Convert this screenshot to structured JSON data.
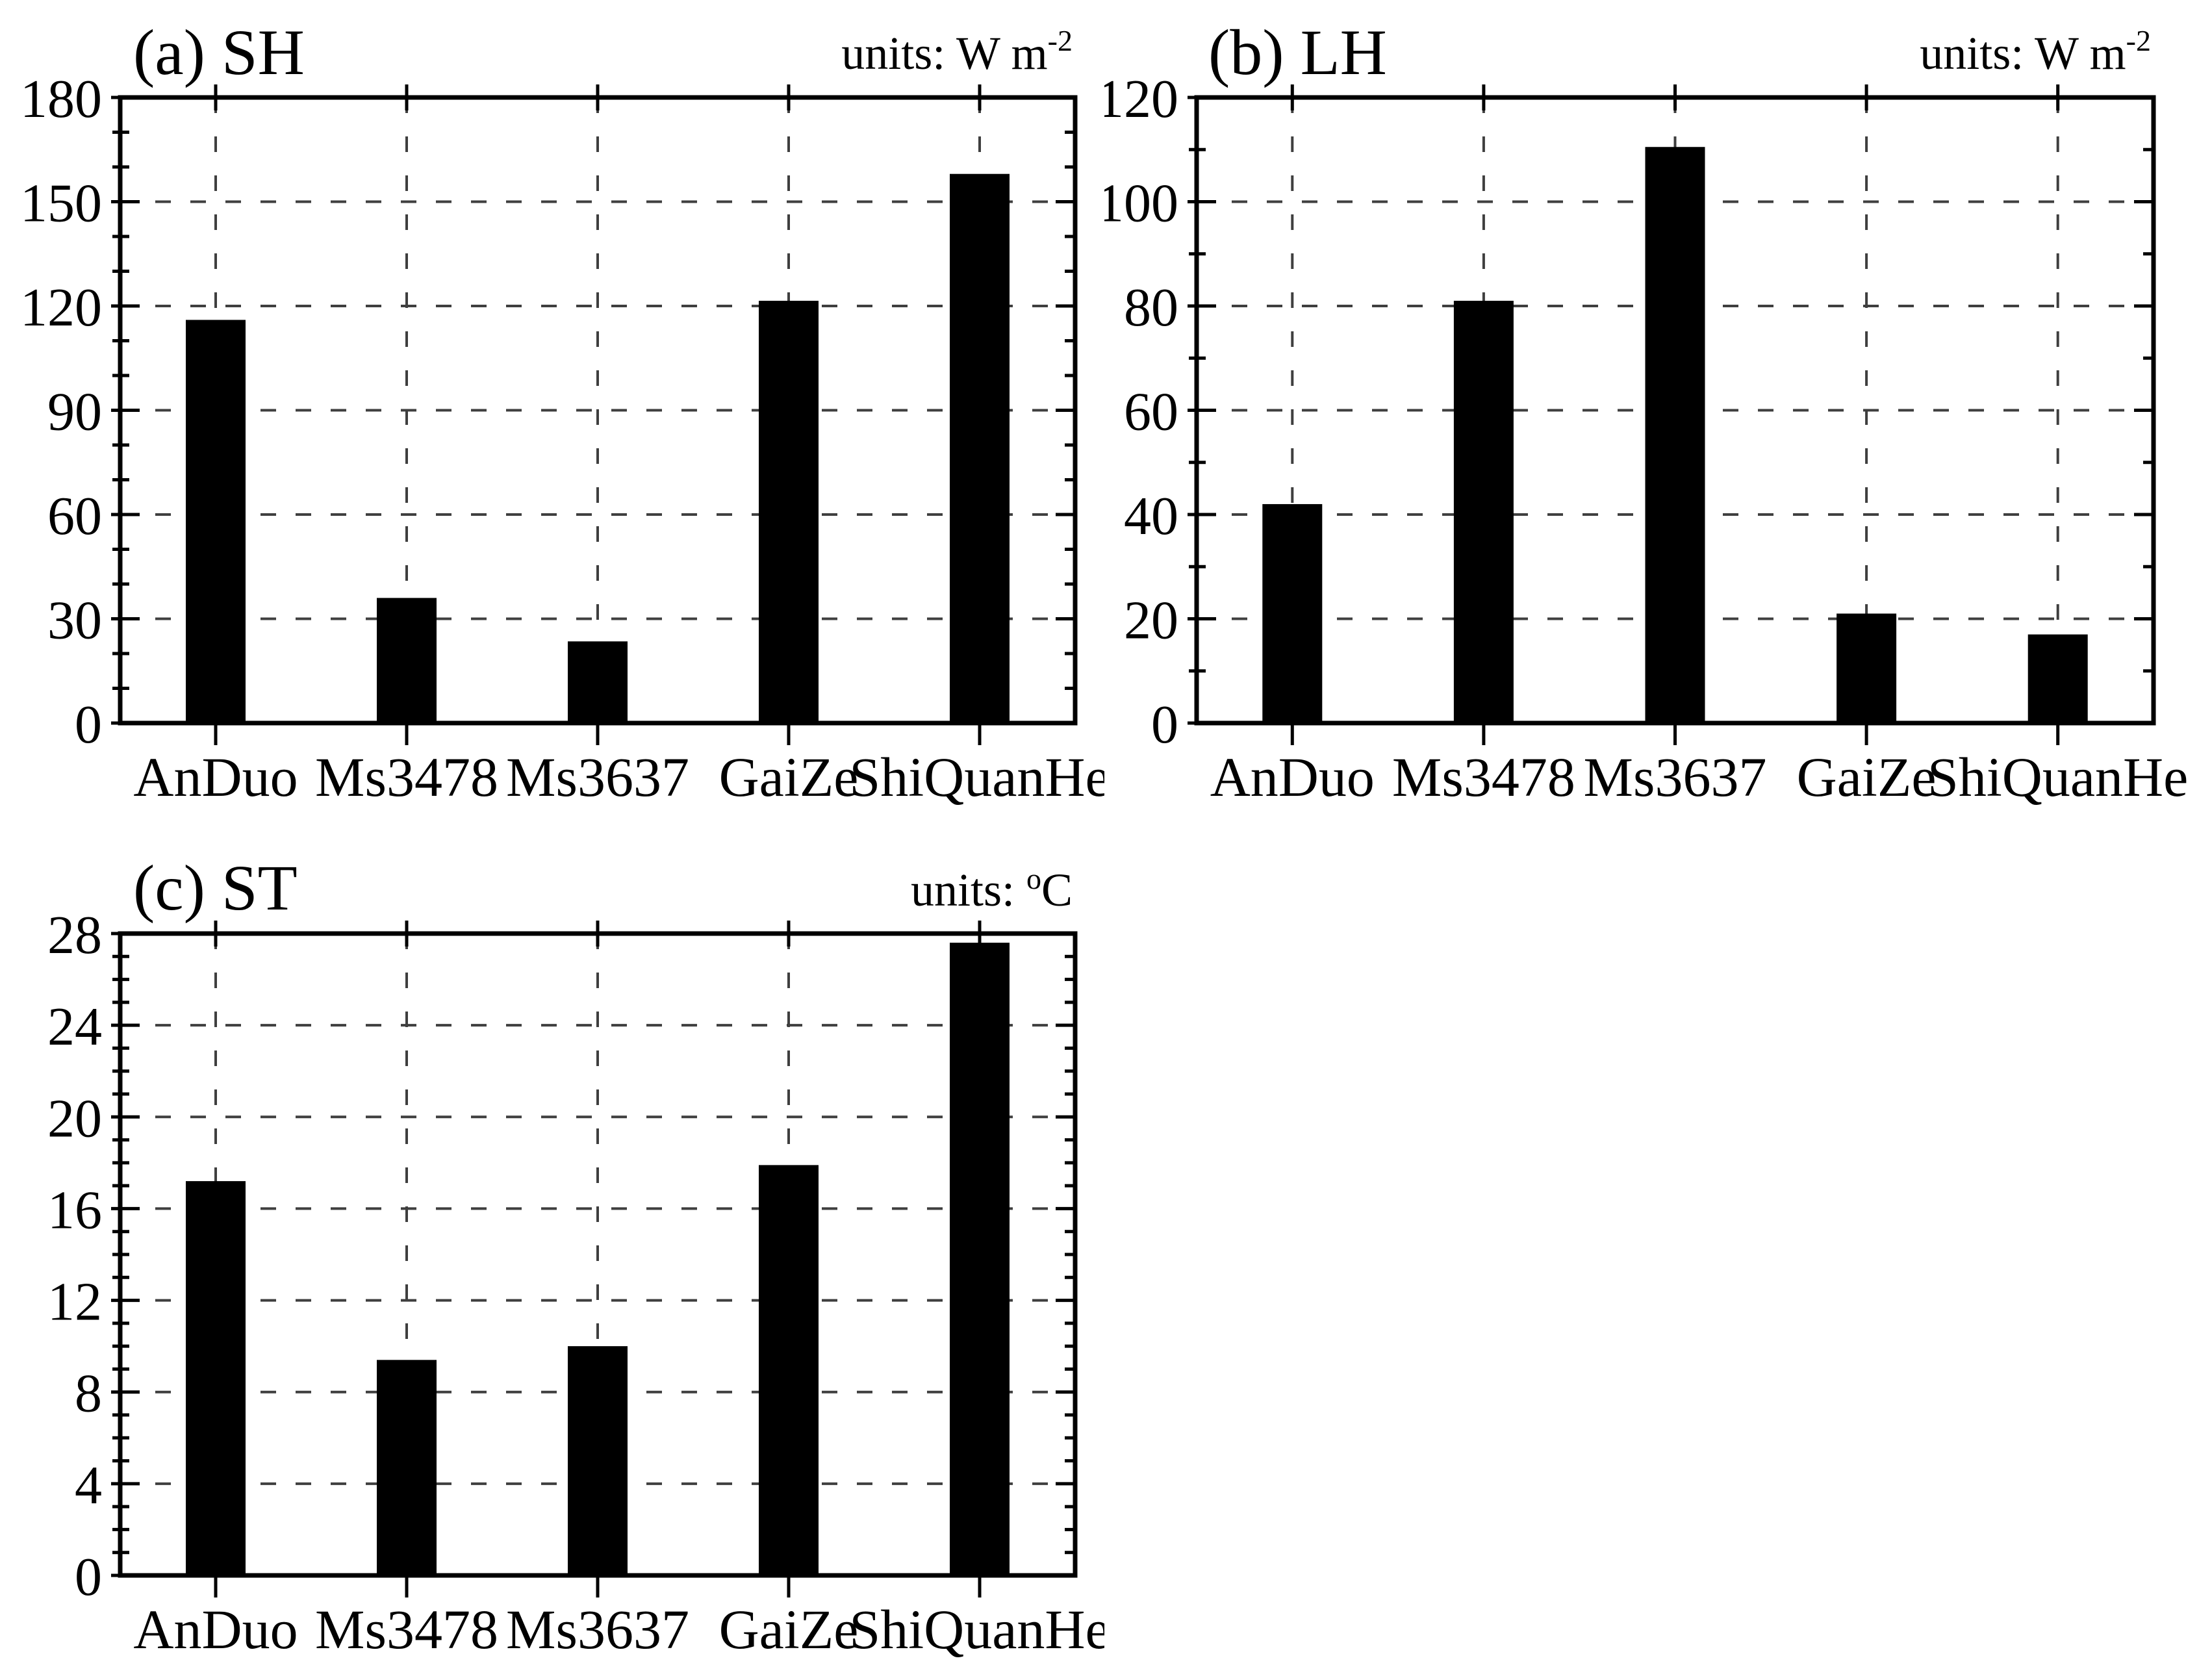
{
  "page": {
    "background": "#ffffff",
    "text_color": "#000000"
  },
  "chart_data": [
    {
      "type": "bar",
      "panel": "a",
      "title": "(a) SH",
      "units": "W m-2",
      "units_prefix": "units: W m",
      "units_sup": "-2",
      "units_suffix": "",
      "categories": [
        "AnDuo",
        "Ms3478",
        "Ms3637",
        "GaiZe",
        "ShiQuanHe"
      ],
      "values": [
        116,
        36,
        23.5,
        121.5,
        158
      ],
      "xlabel": "",
      "ylabel": "",
      "ylim": [
        0,
        180
      ],
      "ytick_step": 30,
      "ytick_labels": [
        "0",
        "30",
        "60",
        "90",
        "120",
        "150",
        "180"
      ],
      "minor_divisions": 3,
      "grid": true,
      "grid_style": "dashed",
      "legend": "none",
      "bar_color": "#000000"
    },
    {
      "type": "bar",
      "panel": "b",
      "title": "(b) LH",
      "units": "W m-2",
      "units_prefix": "units: W m",
      "units_sup": "-2",
      "units_suffix": "",
      "categories": [
        "AnDuo",
        "Ms3478",
        "Ms3637",
        "GaiZe",
        "ShiQuanHe"
      ],
      "values": [
        42,
        81,
        110.5,
        21,
        17
      ],
      "xlabel": "",
      "ylabel": "",
      "ylim": [
        0,
        120
      ],
      "ytick_step": 20,
      "ytick_labels": [
        "0",
        "20",
        "40",
        "60",
        "80",
        "100",
        "120"
      ],
      "minor_divisions": 2,
      "grid": true,
      "grid_style": "dashed",
      "legend": "none",
      "bar_color": "#000000"
    },
    {
      "type": "bar",
      "panel": "c",
      "title": "(c) ST",
      "units": "degC",
      "units_prefix": "units: ",
      "units_sup": "o",
      "units_suffix": "C",
      "categories": [
        "AnDuo",
        "Ms3478",
        "Ms3637",
        "GaiZe",
        "ShiQuanHe"
      ],
      "values": [
        17.2,
        9.4,
        10,
        17.9,
        27.6
      ],
      "xlabel": "",
      "ylabel": "",
      "ylim": [
        0,
        28
      ],
      "ytick_step": 4,
      "ytick_labels": [
        "0",
        "4",
        "8",
        "12",
        "16",
        "20",
        "24",
        "28"
      ],
      "minor_divisions": 4,
      "grid": true,
      "grid_style": "dashed",
      "legend": "none",
      "bar_color": "#000000"
    }
  ]
}
